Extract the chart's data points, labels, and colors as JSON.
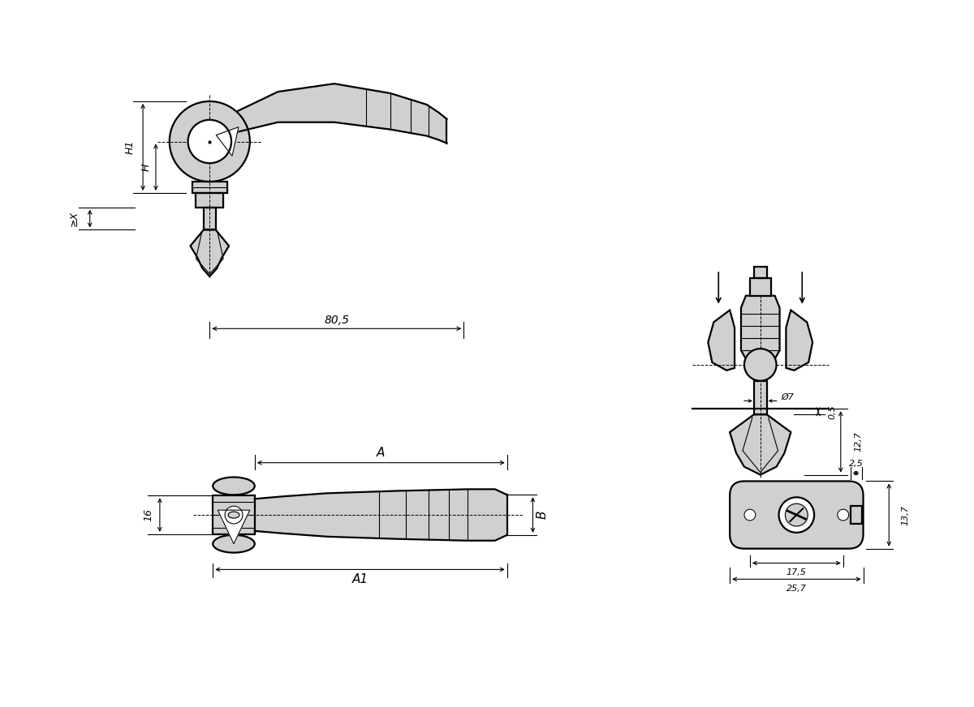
{
  "bg_color": "#ffffff",
  "line_color": "#000000",
  "fill_color": "#d0d0d0",
  "dims": {
    "80_5": "80,5",
    "H1": "H1",
    "H": "H",
    "X": "≥X",
    "d7": "Ø7",
    "0_5": "0,5",
    "12_7": "12,7",
    "A": "A",
    "A1": "A1",
    "B": "B",
    "16": "16",
    "2_5": "2,5",
    "13_7": "13,7",
    "17_5": "17,5",
    "25_7": "25,7"
  }
}
